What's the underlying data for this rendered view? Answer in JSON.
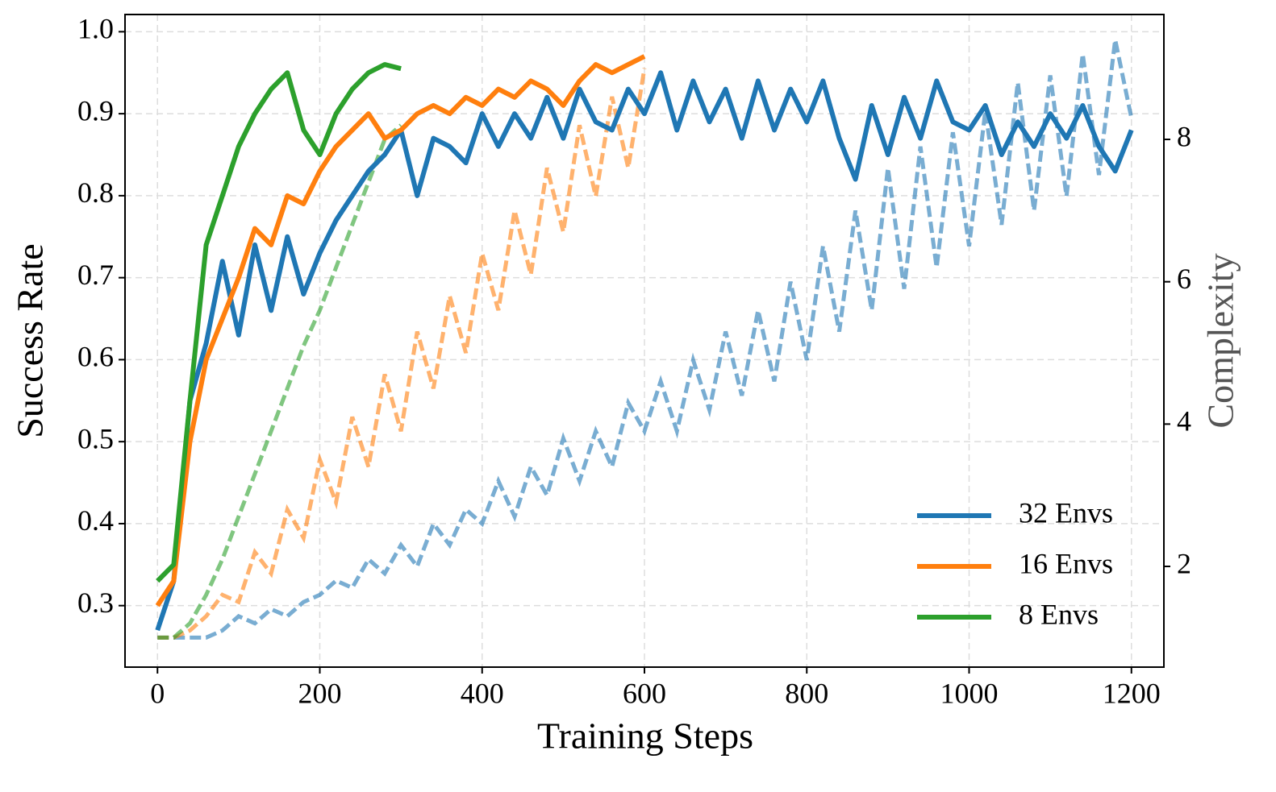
{
  "chart_data": {
    "type": "line",
    "xlabel": "Training Steps",
    "ylabel": "Success Rate",
    "y2label": "Complexity",
    "xlim": [
      -40,
      1240
    ],
    "xticks": [
      0,
      200,
      400,
      600,
      800,
      1000,
      1200
    ],
    "ylim": [
      0.225,
      1.021
    ],
    "yticks": [
      0.3,
      0.4,
      0.5,
      0.6,
      0.7,
      0.8,
      0.9,
      {
        "value": 1,
        "label": "1.0"
      }
    ],
    "y2lim": [
      0.585,
      9.755
    ],
    "y2ticks": [
      2,
      4,
      6,
      8
    ],
    "grid": true,
    "legend": "lower right",
    "series": [
      {
        "name": "32 Envs",
        "color": "#1f77b4",
        "x": [
          0,
          20,
          40,
          60,
          80,
          100,
          120,
          140,
          160,
          180,
          200,
          220,
          240,
          260,
          280,
          300,
          320,
          340,
          360,
          380,
          400,
          420,
          440,
          460,
          480,
          500,
          520,
          540,
          560,
          580,
          600,
          620,
          640,
          660,
          680,
          700,
          720,
          740,
          760,
          780,
          800,
          820,
          840,
          860,
          880,
          900,
          920,
          940,
          960,
          980,
          1000,
          1020,
          1040,
          1060,
          1080,
          1100,
          1120,
          1140,
          1160,
          1180,
          1200
        ],
        "values": [
          0.27,
          0.33,
          0.55,
          0.62,
          0.72,
          0.63,
          0.74,
          0.66,
          0.75,
          0.68,
          0.73,
          0.77,
          0.8,
          0.83,
          0.85,
          0.88,
          0.8,
          0.87,
          0.86,
          0.84,
          0.9,
          0.86,
          0.9,
          0.87,
          0.92,
          0.87,
          0.93,
          0.89,
          0.88,
          0.93,
          0.9,
          0.95,
          0.88,
          0.94,
          0.89,
          0.93,
          0.87,
          0.94,
          0.88,
          0.93,
          0.89,
          0.94,
          0.87,
          0.82,
          0.91,
          0.85,
          0.92,
          0.87,
          0.94,
          0.89,
          0.88,
          0.91,
          0.85,
          0.89,
          0.86,
          0.9,
          0.87,
          0.91,
          0.86,
          0.83,
          0.88
        ],
        "complexity": [
          1,
          1,
          1,
          1,
          1.1,
          1.3,
          1.2,
          1.4,
          1.3,
          1.5,
          1.6,
          1.8,
          1.7,
          2.1,
          1.9,
          2.3,
          2.0,
          2.6,
          2.3,
          2.8,
          2.6,
          3.2,
          2.7,
          3.4,
          3.0,
          3.8,
          3.2,
          3.9,
          3.4,
          4.3,
          3.9,
          4.6,
          3.9,
          4.9,
          4.2,
          5.3,
          4.4,
          5.6,
          4.6,
          6.0,
          4.9,
          6.5,
          5.3,
          7.0,
          5.6,
          7.6,
          5.9,
          7.9,
          6.2,
          8.1,
          6.5,
          8.4,
          6.8,
          8.8,
          7.0,
          8.9,
          7.2,
          9.2,
          7.5,
          9.4,
          8.3
        ]
      },
      {
        "name": "16 Envs",
        "color": "#ff7f0e",
        "x": [
          0,
          20,
          40,
          60,
          80,
          100,
          120,
          140,
          160,
          180,
          200,
          220,
          240,
          260,
          280,
          300,
          320,
          340,
          360,
          380,
          400,
          420,
          440,
          460,
          480,
          500,
          520,
          540,
          560,
          580,
          600
        ],
        "values": [
          0.3,
          0.33,
          0.5,
          0.6,
          0.65,
          0.7,
          0.76,
          0.74,
          0.8,
          0.79,
          0.83,
          0.86,
          0.88,
          0.9,
          0.87,
          0.88,
          0.9,
          0.91,
          0.9,
          0.92,
          0.91,
          0.93,
          0.92,
          0.94,
          0.93,
          0.91,
          0.94,
          0.96,
          0.95,
          0.96,
          0.97
        ],
        "complexity": [
          1,
          1,
          1.1,
          1.3,
          1.6,
          1.5,
          2.2,
          1.9,
          2.8,
          2.4,
          3.5,
          2.9,
          4.1,
          3.4,
          4.7,
          3.9,
          5.3,
          4.5,
          5.8,
          5.0,
          6.4,
          5.6,
          7.0,
          6.1,
          7.6,
          6.7,
          8.2,
          7.2,
          8.6,
          7.6,
          9.0
        ]
      },
      {
        "name": "8 Envs",
        "color": "#2ca02c",
        "x": [
          0,
          20,
          40,
          60,
          80,
          100,
          120,
          140,
          160,
          180,
          200,
          220,
          240,
          260,
          280,
          300
        ],
        "values": [
          0.33,
          0.35,
          0.55,
          0.74,
          0.8,
          0.86,
          0.9,
          0.93,
          0.95,
          0.88,
          0.85,
          0.9,
          0.93,
          0.95,
          0.96,
          0.955
        ],
        "complexity": [
          1,
          1,
          1.2,
          1.6,
          2.1,
          2.7,
          3.3,
          3.9,
          4.5,
          5.1,
          5.6,
          6.2,
          6.8,
          7.4,
          8.0,
          8.2
        ]
      }
    ]
  }
}
